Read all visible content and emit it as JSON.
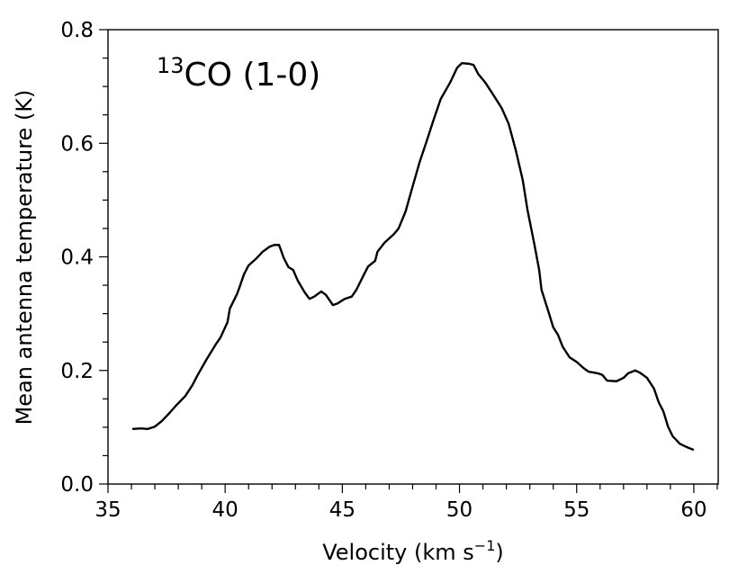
{
  "chart_data": {
    "type": "line",
    "annotation_sup": "13",
    "annotation": "CO (1-0)",
    "xlabel_parts": [
      "Velocity (km s",
      "−1",
      ")"
    ],
    "ylabel": "Mean antenna temperature (K)",
    "xlim": [
      35,
      61.04
    ],
    "ylim": [
      0,
      0.8
    ],
    "xticks": [
      35,
      40,
      45,
      50,
      55,
      60
    ],
    "yticks": [
      {
        "value": 0,
        "label": "0.0"
      },
      0.2,
      0.4,
      0.6,
      0.8
    ],
    "xminor_ticks": [
      36,
      37,
      38,
      39,
      41,
      42,
      43,
      44,
      46,
      47,
      48,
      49,
      51,
      52,
      53,
      54,
      56,
      57,
      58,
      59,
      61
    ],
    "yminor_ticks": [
      0.05,
      0.1,
      0.15,
      0.25,
      0.3,
      0.35,
      0.45,
      0.5,
      0.55,
      0.65,
      0.7,
      0.75
    ],
    "series": [
      {
        "name": "13CO (1-0)",
        "color": "#000000",
        "x": [
          36.04,
          36.4,
          36.7,
          37.0,
          37.3,
          37.6,
          37.9,
          38.3,
          38.6,
          38.8,
          39.2,
          39.6,
          39.8,
          40.1,
          40.2,
          40.5,
          40.6,
          40.8,
          41.0,
          41.3,
          41.6,
          41.9,
          42.1,
          42.3,
          42.5,
          42.7,
          42.9,
          43.1,
          43.4,
          43.6,
          43.8,
          44.1,
          44.3,
          44.6,
          44.8,
          45.1,
          45.4,
          45.6,
          45.9,
          46.1,
          46.4,
          46.5,
          46.8,
          47.2,
          47.4,
          47.7,
          48.0,
          48.3,
          48.6,
          48.9,
          49.2,
          49.6,
          49.9,
          50.1,
          50.4,
          50.6,
          50.8,
          51.1,
          51.4,
          51.8,
          52.1,
          52.4,
          52.7,
          52.9,
          53.2,
          53.4,
          53.5,
          53.8,
          54.0,
          54.2,
          54.4,
          54.7,
          55.0,
          55.3,
          55.5,
          55.9,
          56.1,
          56.3,
          56.7,
          57.0,
          57.2,
          57.5,
          57.7,
          58.0,
          58.3,
          58.5,
          58.7,
          58.9,
          59.1,
          59.4,
          59.7,
          60.0
        ],
        "values": [
          0.097,
          0.098,
          0.097,
          0.101,
          0.111,
          0.124,
          0.138,
          0.155,
          0.174,
          0.19,
          0.219,
          0.246,
          0.258,
          0.285,
          0.309,
          0.334,
          0.345,
          0.369,
          0.385,
          0.396,
          0.409,
          0.418,
          0.421,
          0.421,
          0.398,
          0.382,
          0.377,
          0.358,
          0.337,
          0.326,
          0.33,
          0.339,
          0.333,
          0.315,
          0.318,
          0.326,
          0.33,
          0.342,
          0.367,
          0.383,
          0.393,
          0.409,
          0.425,
          0.44,
          0.45,
          0.48,
          0.524,
          0.567,
          0.604,
          0.642,
          0.678,
          0.707,
          0.733,
          0.741,
          0.74,
          0.738,
          0.722,
          0.707,
          0.688,
          0.662,
          0.634,
          0.588,
          0.535,
          0.483,
          0.421,
          0.377,
          0.342,
          0.303,
          0.276,
          0.263,
          0.242,
          0.223,
          0.215,
          0.204,
          0.198,
          0.195,
          0.192,
          0.182,
          0.181,
          0.187,
          0.195,
          0.2,
          0.196,
          0.187,
          0.168,
          0.144,
          0.128,
          0.101,
          0.084,
          0.071,
          0.065,
          0.06
        ]
      }
    ]
  }
}
